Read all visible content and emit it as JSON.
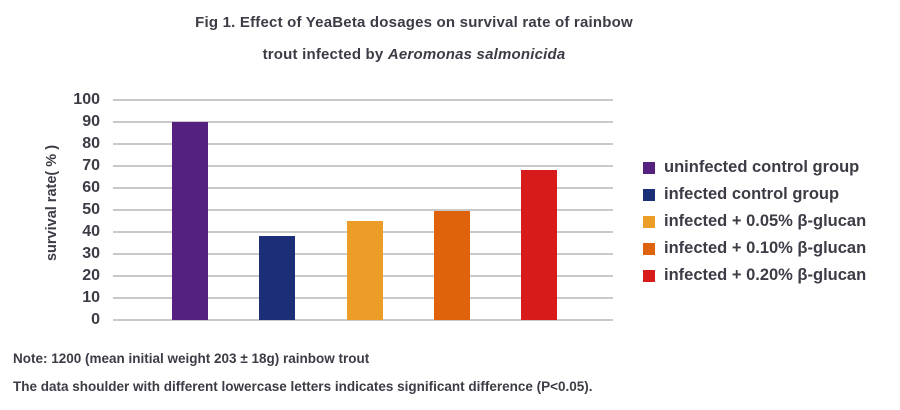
{
  "title": {
    "line1": "Fig 1. Effect of YeaBeta dosages on survival rate of rainbow",
    "line2_prefix": "trout infected by ",
    "line2_species": "Aeromonas salmonicida"
  },
  "chart_data": {
    "type": "bar",
    "title": "Fig 1. Effect of YeaBeta dosages on survival rate of rainbow trout infected by Aeromonas salmonicida",
    "ylabel": "survival rate( % )",
    "xlabel": "",
    "ylim": [
      0,
      100
    ],
    "yticks": [
      0,
      10,
      20,
      30,
      40,
      50,
      60,
      70,
      80,
      90,
      100
    ],
    "grid": true,
    "legend_position": "right",
    "categories": [
      "uninfected control group",
      "infected control group",
      "infected + 0.05% β-glucan",
      "infected + 0.10% β-glucan",
      "infected + 0.20% β-glucan"
    ],
    "values": [
      90,
      38,
      45,
      49.5,
      68
    ],
    "colors": [
      "#55217E",
      "#1C2E78",
      "#EC9D27",
      "#DF630C",
      "#D71B1B"
    ],
    "gridline_color": "#C9C9C9",
    "text_color": "#3C3C46"
  },
  "notes": {
    "line1": "Note: 1200 (mean initial weight 203 ± 18g) rainbow trout",
    "line2": "The data shoulder with different lowercase letters indicates significant difference (P<0.05)."
  }
}
